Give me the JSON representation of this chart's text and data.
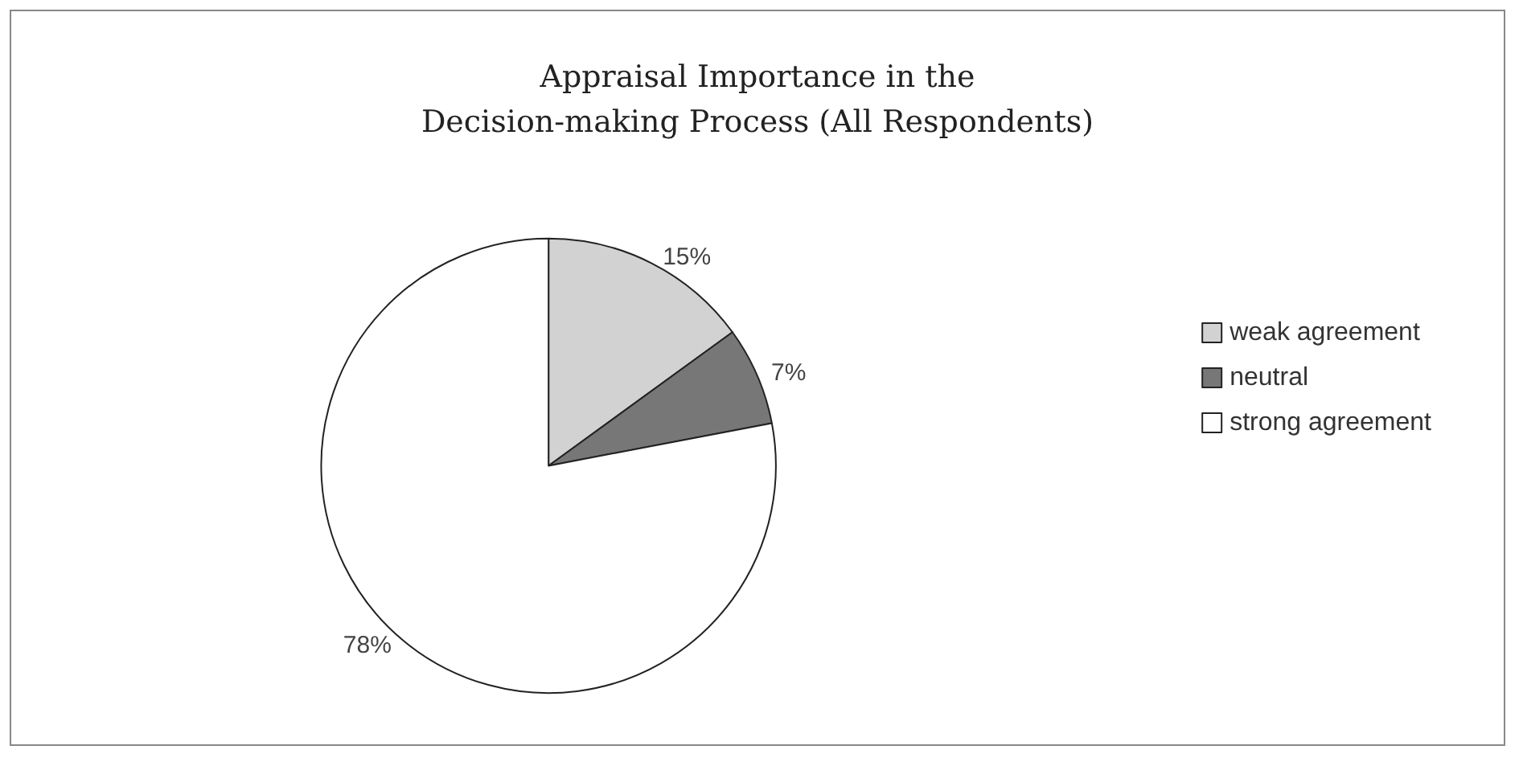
{
  "chart_data": {
    "type": "pie",
    "title": "Appraisal Importance in the\nDecision-making Process (All Respondents)",
    "categories": [
      "weak agreement",
      "neutral",
      "strong agreement"
    ],
    "values": [
      15,
      7,
      78
    ],
    "colors": [
      "#d2d2d2",
      "#777777",
      "#ffffff"
    ],
    "value_labels": [
      "15%",
      "7%",
      "78%"
    ],
    "legend": "right"
  }
}
